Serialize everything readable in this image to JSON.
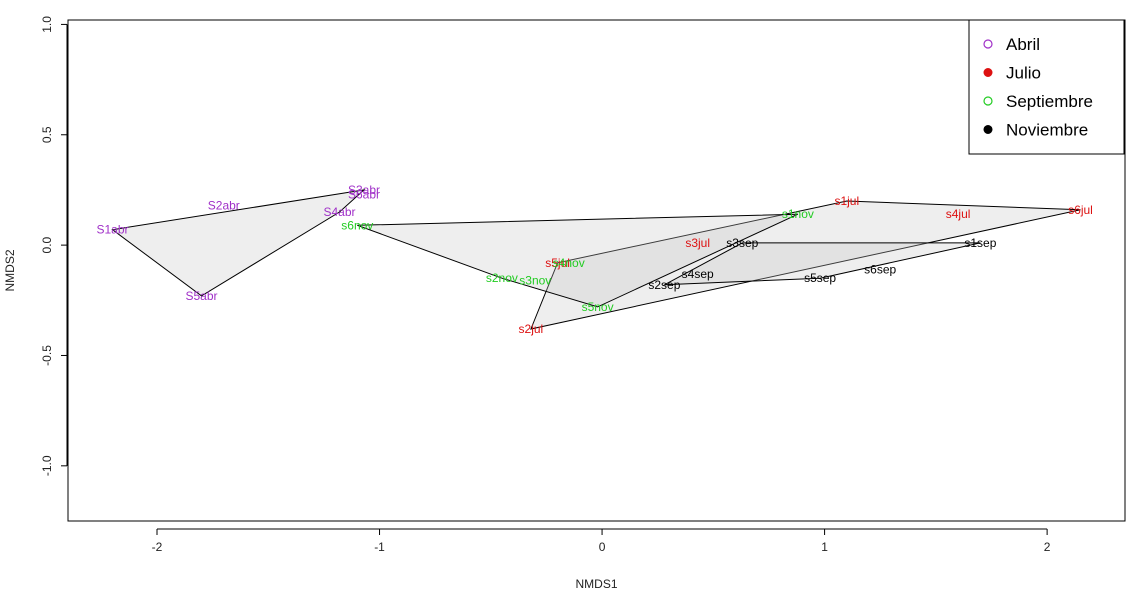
{
  "chart_data": {
    "type": "scatter",
    "title": "",
    "xlabel": "NMDS1",
    "ylabel": "NMDS2",
    "xlim": [
      -2.4,
      2.35
    ],
    "ylim": [
      -1.25,
      1.02
    ],
    "x_ticks": [
      -2,
      -1,
      0,
      1,
      2
    ],
    "y_ticks": [
      -1.0,
      -0.5,
      0.0,
      0.5,
      1.0
    ],
    "x_tick_labels": [
      "-2",
      "-1",
      "0",
      "1",
      "2"
    ],
    "y_tick_labels": [
      "-1.0",
      "-0.5",
      "0.0",
      "0.5",
      "1.0"
    ],
    "legend_position": "top-right",
    "legend": [
      {
        "name": "Abril",
        "color": "#a030c8",
        "marker": "open-circle"
      },
      {
        "name": "Julio",
        "color": "#dd1111",
        "marker": "filled-circle"
      },
      {
        "name": "Septiembre",
        "color": "#22cc22",
        "marker": "open-circle"
      },
      {
        "name": "Noviembre",
        "color": "#000000",
        "marker": "filled-circle"
      }
    ],
    "series": [
      {
        "name": "Abril",
        "color": "#a030c8",
        "points": [
          {
            "label": "S1abr",
            "x": -2.2,
            "y": 0.07
          },
          {
            "label": "S2abr",
            "x": -1.7,
            "y": 0.18
          },
          {
            "label": "S3abr",
            "x": -1.07,
            "y": 0.25
          },
          {
            "label": "S6abr",
            "x": -1.07,
            "y": 0.23
          },
          {
            "label": "S4abr",
            "x": -1.18,
            "y": 0.15
          },
          {
            "label": "S5abr",
            "x": -1.8,
            "y": -0.23
          }
        ]
      },
      {
        "name": "Julio",
        "color": "#dd1111",
        "points": [
          {
            "label": "s1jul",
            "x": 1.1,
            "y": 0.2
          },
          {
            "label": "s4jul",
            "x": 1.6,
            "y": 0.14
          },
          {
            "label": "s6jul",
            "x": 2.15,
            "y": 0.16
          },
          {
            "label": "s3jul",
            "x": 0.43,
            "y": 0.01
          },
          {
            "label": "s5jul",
            "x": -0.2,
            "y": -0.08
          },
          {
            "label": "s2jul",
            "x": -0.32,
            "y": -0.38
          }
        ]
      },
      {
        "name": "Septiembre",
        "color": "#22cc22",
        "points": [
          {
            "label": "s1nov",
            "x": 0.88,
            "y": 0.14
          },
          {
            "label": "s6nov",
            "x": -1.1,
            "y": 0.09
          },
          {
            "label": "s4nov",
            "x": -0.15,
            "y": -0.08
          },
          {
            "label": "s2nov",
            "x": -0.45,
            "y": -0.15
          },
          {
            "label": "s3nov",
            "x": -0.3,
            "y": -0.16
          },
          {
            "label": "s5nov",
            "x": -0.02,
            "y": -0.28
          }
        ]
      },
      {
        "name": "Noviembre",
        "color": "#000000",
        "points": [
          {
            "label": "s3sep",
            "x": 0.63,
            "y": 0.01
          },
          {
            "label": "s1sep",
            "x": 1.7,
            "y": 0.01
          },
          {
            "label": "s4sep",
            "x": 0.43,
            "y": -0.13
          },
          {
            "label": "s2sep",
            "x": 0.28,
            "y": -0.18
          },
          {
            "label": "s5sep",
            "x": 0.98,
            "y": -0.15
          },
          {
            "label": "s6sep",
            "x": 1.25,
            "y": -0.11
          }
        ]
      }
    ],
    "hulls": [
      {
        "name": "Abril",
        "points": [
          [
            -2.2,
            0.07
          ],
          [
            -1.07,
            0.25
          ],
          [
            -1.18,
            0.15
          ],
          [
            -1.8,
            -0.23
          ]
        ]
      },
      {
        "name": "Julio",
        "points": [
          [
            -0.32,
            -0.38
          ],
          [
            -0.2,
            -0.08
          ],
          [
            1.1,
            0.2
          ],
          [
            2.15,
            0.16
          ]
        ]
      },
      {
        "name": "Septiembre",
        "points": [
          [
            -1.1,
            0.09
          ],
          [
            0.88,
            0.14
          ],
          [
            -0.02,
            -0.28
          ],
          [
            -0.45,
            -0.15
          ]
        ]
      },
      {
        "name": "Noviembre",
        "points": [
          [
            0.28,
            -0.18
          ],
          [
            0.63,
            0.01
          ],
          [
            1.7,
            0.01
          ],
          [
            0.98,
            -0.15
          ]
        ]
      }
    ]
  }
}
